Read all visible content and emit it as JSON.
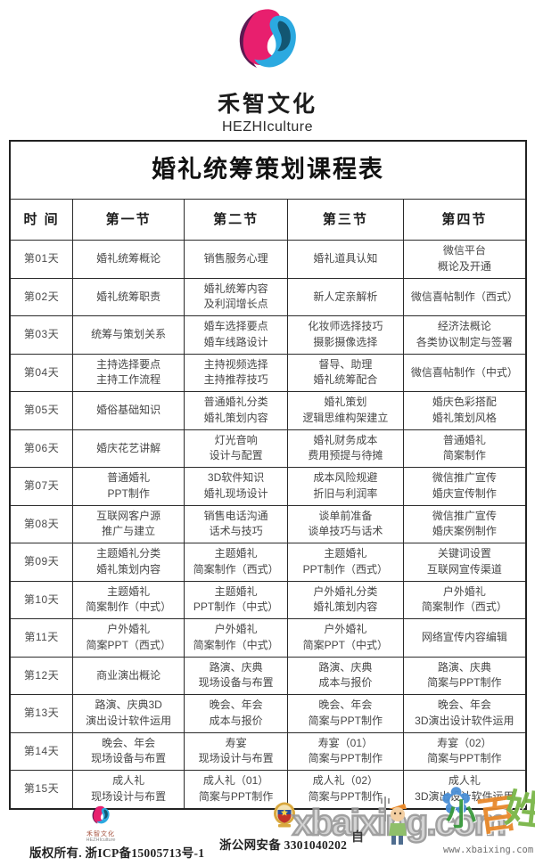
{
  "colors": {
    "logo_magenta": "#e81f6e",
    "logo_purple": "#5c1a52",
    "logo_blue": "#2ba9e0",
    "logo_teal": "#135672",
    "border": "#2b2b2b",
    "text": "#474747",
    "wm_blue": "#4a8fd6",
    "wm_orange": "#e8892b",
    "wm_green": "#7ab648"
  },
  "brand": {
    "name_cn": "禾智文化",
    "name_en": "HEZHIculture"
  },
  "table": {
    "title": "婚礼统筹策划课程表",
    "headers": [
      "时 间",
      "第一节",
      "第二节",
      "第三节",
      "第四节"
    ],
    "rows": [
      {
        "day": "第01天",
        "cells": [
          [
            "婚礼统筹概论"
          ],
          [
            "销售服务心理"
          ],
          [
            "婚礼道具认知"
          ],
          [
            "微信平台",
            "概论及开通"
          ]
        ]
      },
      {
        "day": "第02天",
        "cells": [
          [
            "婚礼统筹职责"
          ],
          [
            "婚礼统筹内容",
            "及利润增长点"
          ],
          [
            "新人定亲解析"
          ],
          [
            "微信喜帖制作（西式）"
          ]
        ]
      },
      {
        "day": "第03天",
        "cells": [
          [
            "统筹与策划关系"
          ],
          [
            "婚车选择要点",
            "婚车线路设计"
          ],
          [
            "化妆师选择技巧",
            "摄影摄像选择"
          ],
          [
            "经济法概论",
            "各类协议制定与签署"
          ]
        ]
      },
      {
        "day": "第04天",
        "cells": [
          [
            "主持选择要点",
            "主持工作流程"
          ],
          [
            "主持视频选择",
            "主持推荐技巧"
          ],
          [
            "督导、助理",
            "婚礼统筹配合"
          ],
          [
            "微信喜帖制作（中式）"
          ]
        ]
      },
      {
        "day": "第05天",
        "cells": [
          [
            "婚俗基础知识"
          ],
          [
            "普通婚礼分类",
            "婚礼策划内容"
          ],
          [
            "婚礼策划",
            "逻辑思维构架建立"
          ],
          [
            "婚庆色彩搭配",
            "婚礼策划风格"
          ]
        ]
      },
      {
        "day": "第06天",
        "cells": [
          [
            "婚庆花艺讲解"
          ],
          [
            "灯光音响",
            "设计与配置"
          ],
          [
            "婚礼财务成本",
            "费用预提与待摊"
          ],
          [
            "普通婚礼",
            "简案制作"
          ]
        ]
      },
      {
        "day": "第07天",
        "cells": [
          [
            "普通婚礼",
            "PPT制作"
          ],
          [
            "3D软件知识",
            "婚礼现场设计"
          ],
          [
            "成本风险规避",
            "折旧与利润率"
          ],
          [
            "微信推广宣传",
            "婚庆宣传制作"
          ]
        ]
      },
      {
        "day": "第08天",
        "cells": [
          [
            "互联网客户源",
            "推广与建立"
          ],
          [
            "销售电话沟通",
            "话术与技巧"
          ],
          [
            "谈单前准备",
            "谈单技巧与话术"
          ],
          [
            "微信推广宣传",
            "婚庆案例制作"
          ]
        ]
      },
      {
        "day": "第09天",
        "cells": [
          [
            "主题婚礼分类",
            "婚礼策划内容"
          ],
          [
            "主题婚礼",
            "简案制作（西式）"
          ],
          [
            "主题婚礼",
            "PPT制作（西式）"
          ],
          [
            "关键词设置",
            "互联网宣传渠道"
          ]
        ]
      },
      {
        "day": "第10天",
        "cells": [
          [
            "主题婚礼",
            "简案制作（中式）"
          ],
          [
            "主题婚礼",
            "PPT制作（中式）"
          ],
          [
            "户外婚礼分类",
            "婚礼策划内容"
          ],
          [
            "户外婚礼",
            "简案制作（西式）"
          ]
        ]
      },
      {
        "day": "第11天",
        "cells": [
          [
            "户外婚礼",
            "简案PPT（西式）"
          ],
          [
            "户外婚礼",
            "简案制作（中式）"
          ],
          [
            "户外婚礼",
            "简案PPT（中式）"
          ],
          [
            "网络宣传内容编辑"
          ]
        ]
      },
      {
        "day": "第12天",
        "cells": [
          [
            "商业演出概论"
          ],
          [
            "路演、庆典",
            "现场设备与布置"
          ],
          [
            "路演、庆典",
            "成本与报价"
          ],
          [
            "路演、庆典",
            "简案与PPT制作"
          ]
        ]
      },
      {
        "day": "第13天",
        "cells": [
          [
            "路演、庆典3D",
            "演出设计软件运用"
          ],
          [
            "晚会、年会",
            "成本与报价"
          ],
          [
            "晚会、年会",
            "简案与PPT制作"
          ],
          [
            "晚会、年会",
            "3D演出设计软件运用"
          ]
        ]
      },
      {
        "day": "第14天",
        "cells": [
          [
            "晚会、年会",
            "现场设备与布置"
          ],
          [
            "寿宴",
            "现场设计与布置"
          ],
          [
            "寿宴（01）",
            "简案与PPT制作"
          ],
          [
            "寿宴（02）",
            "简案与PPT制作"
          ]
        ]
      },
      {
        "day": "第15天",
        "cells": [
          [
            "成人礼",
            "现场设计与布置"
          ],
          [
            "成人礼（01）",
            "简案与PPT制作"
          ],
          [
            "成人礼（02）",
            "简案与PPT制作"
          ],
          [
            "成人礼",
            "3D演出设计软件运用"
          ]
        ]
      }
    ]
  },
  "footer": {
    "brand_cn": "禾智文化",
    "brand_en": "HEZHIculture",
    "copyright": "版权所有. 浙ICP备15005713号-1",
    "security": "浙公网安备 3301040202"
  },
  "watermark": {
    "big_text": "xbaixing.com",
    "url_text": "www.xbaixing.com",
    "char_xiao": "小",
    "char_bai": "百",
    "char_xing": "姓",
    "char_dark": "自",
    "flower": "✿"
  }
}
